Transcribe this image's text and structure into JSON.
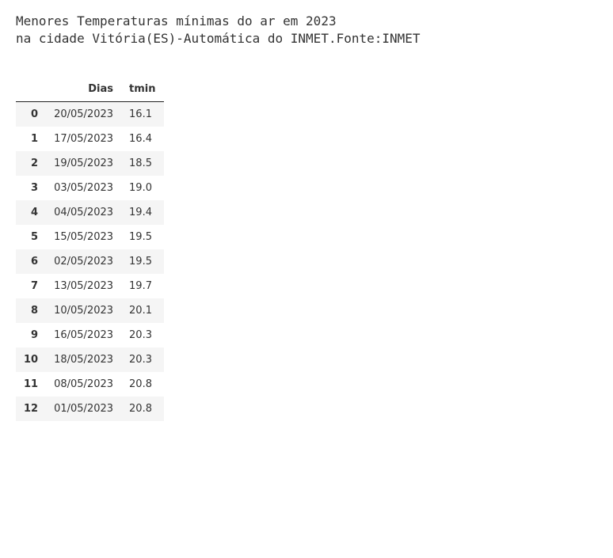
{
  "title_line1": "Menores Temperaturas mínimas do ar em 2023",
  "title_line2": "na cidade Vitória(ES)-Automática do INMET.Fonte:INMET",
  "table": {
    "columns": [
      "Dias",
      "tmin"
    ],
    "index": [
      "0",
      "1",
      "2",
      "3",
      "4",
      "5",
      "6",
      "7",
      "8",
      "9",
      "10",
      "11",
      "12"
    ],
    "rows": [
      [
        "20/05/2023",
        "16.1"
      ],
      [
        "17/05/2023",
        "16.4"
      ],
      [
        "19/05/2023",
        "18.5"
      ],
      [
        "03/05/2023",
        "19.0"
      ],
      [
        "04/05/2023",
        "19.4"
      ],
      [
        "15/05/2023",
        "19.5"
      ],
      [
        "02/05/2023",
        "19.5"
      ],
      [
        "13/05/2023",
        "19.7"
      ],
      [
        "10/05/2023",
        "20.1"
      ],
      [
        "16/05/2023",
        "20.3"
      ],
      [
        "18/05/2023",
        "20.3"
      ],
      [
        "08/05/2023",
        "20.8"
      ],
      [
        "01/05/2023",
        "20.8"
      ]
    ],
    "header_fontsize": 13,
    "cell_fontsize": 13,
    "row_bg_odd": "#f5f5f5",
    "row_bg_even": "#ffffff",
    "header_border_color": "#222222",
    "text_color": "#333333"
  }
}
